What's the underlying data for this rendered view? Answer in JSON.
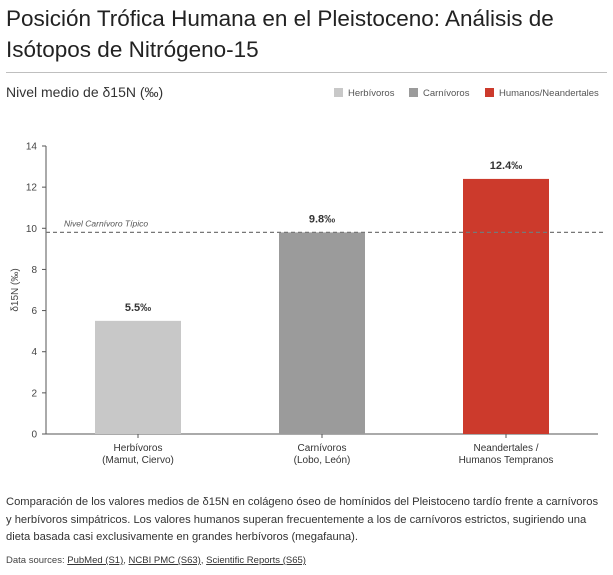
{
  "header": {
    "title": "Posición Trófica Humana en el Pleistoceno: Análisis de Isótopos de Nitrógeno-15",
    "subtitle": "Nivel medio de δ15N (‰)"
  },
  "legend": [
    {
      "label": "Herbívoros",
      "color": "#c8c8c8"
    },
    {
      "label": "Carnívoros",
      "color": "#9b9b9b"
    },
    {
      "label": "Humanos/Neandertales",
      "color": "#cc3a2c"
    }
  ],
  "chart_data": {
    "type": "bar",
    "categories": [
      [
        "Herbívoros",
        "(Mamut, Ciervo)"
      ],
      [
        "Carnívoros",
        "(Lobo, León)"
      ],
      [
        "Neandertales /",
        "Humanos Tempranos"
      ]
    ],
    "values": [
      5.5,
      9.8,
      12.4
    ],
    "value_labels": [
      "5.5‰",
      "9.8‰",
      "12.4‰"
    ],
    "colors": [
      "#c8c8c8",
      "#9b9b9b",
      "#cc3a2c"
    ],
    "ylabel": "δ15N (‰)",
    "ylim": [
      0,
      14
    ],
    "yticks": [
      0,
      2,
      4,
      6,
      8,
      10,
      12,
      14
    ],
    "ytick_labels": [
      "0",
      "2",
      "4",
      "6",
      "8",
      "10",
      "12",
      "14"
    ],
    "reference_line": {
      "value": 9.8,
      "label": "Nivel Carnívoro Típico",
      "color": "#777777"
    },
    "grid": false,
    "legend_position": "top-right"
  },
  "description": "Comparación de los valores medios de δ15N en colágeno óseo de homínidos del Pleistoceno tardío frente a carnívoros y herbívoros simpátricos. Los valores humanos superan frecuentemente a los de carnívoros estrictos, sugiriendo una dieta basada casi exclusivamente en grandes herbívoros (megafauna).",
  "sources": {
    "prefix": "Data sources:",
    "items": [
      "PubMed (S1)",
      "NCBI PMC (S63)",
      "Scientific Reports (S65)"
    ]
  }
}
